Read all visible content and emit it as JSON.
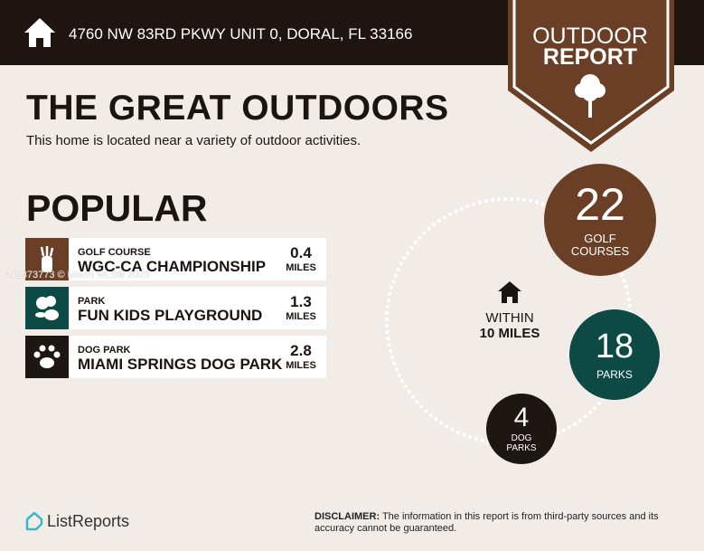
{
  "header": {
    "address": "4760 NW 83RD PKWY UNIT 0, DORAL, FL 33166"
  },
  "badge": {
    "line1": "OUTDOOR",
    "line2": "REPORT"
  },
  "title": "THE GREAT OUTDOORS",
  "subtitle": "This home is located near a variety of outdoor activities.",
  "popular_heading": "POPULAR",
  "watermark": "A11873773 © Miami MLS® 2025",
  "popular": [
    {
      "category": "GOLF COURSE",
      "name": "WGC-CA CHAMPIONSHIP",
      "distance": "0.4",
      "unit": "MILES",
      "icon": "golf-bag-icon",
      "color": "#6b3f25"
    },
    {
      "category": "PARK",
      "name": "FUN KIDS PLAYGROUND",
      "distance": "1.3",
      "unit": "MILES",
      "icon": "trees-icon",
      "color": "#0e4a45"
    },
    {
      "category": "DOG PARK",
      "name": "MIAMI SPRINGS DOG PARK",
      "distance": "2.8",
      "unit": "MILES",
      "icon": "paw-icon",
      "color": "#1e1612"
    }
  ],
  "radius": {
    "line1": "WITHIN",
    "line2": "10 MILES"
  },
  "counts": [
    {
      "value": "22",
      "label1": "GOLF",
      "label2": "COURSES",
      "color": "#6b3f25"
    },
    {
      "value": "18",
      "label1": "PARKS",
      "label2": "",
      "color": "#0e4a45"
    },
    {
      "value": "4",
      "label1": "DOG",
      "label2": "PARKS",
      "color": "#1e1612"
    }
  ],
  "footer": {
    "logo": "ListReports",
    "disclaimer_label": "DISCLAIMER:",
    "disclaimer": " The information in this report is from third-party sources and its accuracy cannot be guaranteed."
  }
}
